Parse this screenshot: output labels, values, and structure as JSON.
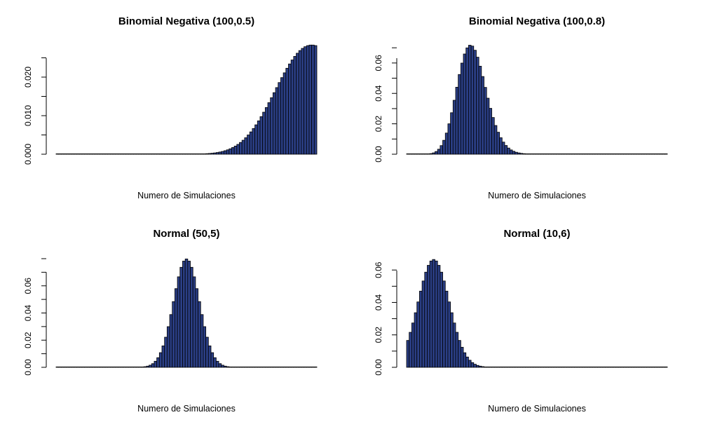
{
  "chart_data": [
    {
      "type": "bar",
      "title": "Binomial Negativa (100,0.5)",
      "xlabel": "Numero de Simulaciones",
      "ylabel": "",
      "ylim": [
        0,
        0.028
      ],
      "yticks": [
        0.0,
        0.01,
        0.02
      ],
      "ytick_labels": [
        "0.000",
        "0.010",
        "0.020"
      ],
      "bar_color": "#2b3f86",
      "distribution": {
        "family": "negative-binomial",
        "size": 100,
        "prob": 0.5,
        "x_from": 0,
        "x_to": 100
      }
    },
    {
      "type": "bar",
      "title": "Binomial Negativa (100,0.8)",
      "xlabel": "Numero de Simulaciones",
      "ylabel": "",
      "ylim": [
        0,
        0.071
      ],
      "yticks": [
        0.0,
        0.02,
        0.04,
        0.06
      ],
      "ytick_labels": [
        "0.00",
        "0.02",
        "0.04",
        "0.06"
      ],
      "bar_color": "#2b3f86",
      "distribution": {
        "family": "negative-binomial",
        "size": 100,
        "prob": 0.8,
        "x_from": 0,
        "x_to": 100
      }
    },
    {
      "type": "bar",
      "title": "Normal (50,5)",
      "xlabel": "Numero de Simulaciones",
      "ylabel": "",
      "ylim": [
        0,
        0.08
      ],
      "yticks": [
        0.0,
        0.02,
        0.04,
        0.06
      ],
      "ytick_labels": [
        "0.00",
        "0.02",
        "0.04",
        "0.06"
      ],
      "bar_color": "#2b3f86",
      "distribution": {
        "family": "normal",
        "mean": 50,
        "sd": 5,
        "x_from": 0,
        "x_to": 100
      }
    },
    {
      "type": "bar",
      "title": "Normal (10,6)",
      "xlabel": "Numero de Simulaciones",
      "ylabel": "",
      "ylim": [
        0,
        0.067
      ],
      "yticks": [
        0.0,
        0.02,
        0.04,
        0.06
      ],
      "ytick_labels": [
        "0.00",
        "0.02",
        "0.04",
        "0.06"
      ],
      "bar_color": "#2b3f86",
      "distribution": {
        "family": "normal",
        "mean": 10,
        "sd": 6,
        "x_from": 0,
        "x_to": 100
      }
    }
  ]
}
